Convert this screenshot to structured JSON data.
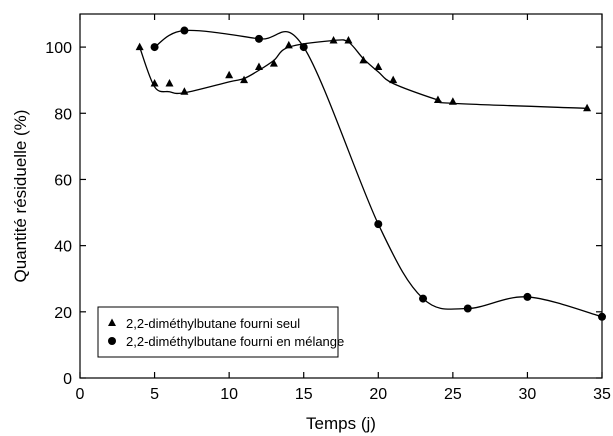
{
  "chart_data": {
    "type": "line",
    "xlabel": "Temps (j)",
    "ylabel": "Quantité résiduelle (%)",
    "xlim": [
      0,
      35
    ],
    "ylim": [
      0,
      110
    ],
    "xticks": [
      0,
      5,
      10,
      15,
      20,
      25,
      30,
      35
    ],
    "yticks": [
      0,
      20,
      40,
      60,
      80,
      100
    ],
    "grid": false,
    "legend_position": "bottom-left",
    "series": [
      {
        "name": "2,2-diméthylbutane fourni seul",
        "marker": "triangle",
        "x": [
          4,
          5,
          6,
          7,
          10,
          11,
          12,
          13,
          14,
          17,
          18,
          19,
          20,
          21,
          24,
          25,
          34
        ],
        "y": [
          100,
          89,
          89,
          86.5,
          91.5,
          90,
          94,
          95,
          100.5,
          102,
          102,
          96,
          94,
          90,
          84,
          83.5,
          81.5
        ],
        "curve_y": [
          100,
          88,
          86.5,
          86.2,
          89.5,
          90.5,
          93,
          96,
          100,
          102,
          101.5,
          96.5,
          92.5,
          89,
          84,
          83,
          81.5
        ]
      },
      {
        "name": "2,2-diméthylbutane fourni en mélange",
        "marker": "circle",
        "x": [
          5,
          7,
          12,
          15,
          20,
          23,
          26,
          30,
          35
        ],
        "y": [
          100,
          105,
          102.5,
          100,
          46.5,
          24,
          21,
          24.5,
          18.5
        ]
      }
    ],
    "colors": {
      "axis": "#000000",
      "series": "#000000"
    }
  }
}
